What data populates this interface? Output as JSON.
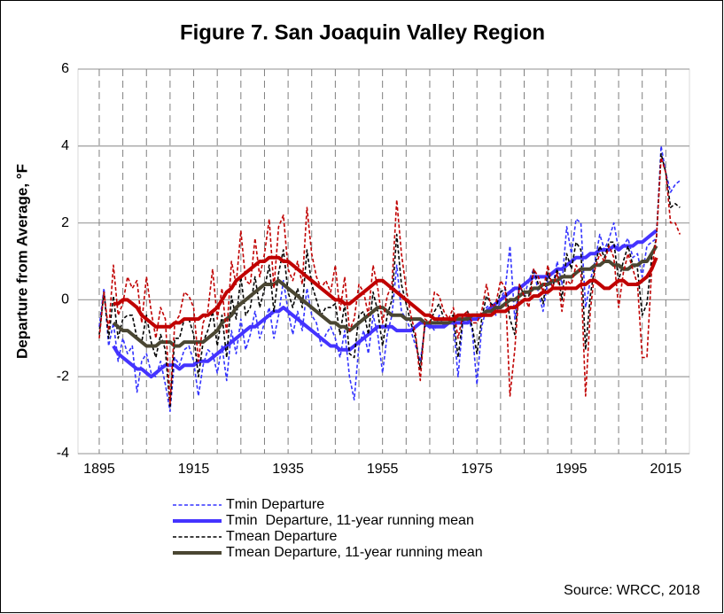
{
  "chart_data": {
    "type": "line",
    "title": "Figure 7. San Joaquin Valley Region",
    "y_label": "Departure from Average, °F",
    "source": "Source: WRCC, 2018",
    "xlim": [
      1890.5,
      2020
    ],
    "xticks": [
      1895,
      1915,
      1935,
      1955,
      1975,
      1995,
      2015
    ],
    "ylim": [
      -4,
      6
    ],
    "yticks": [
      -4,
      -2,
      0,
      2,
      4,
      6
    ],
    "grid": true,
    "x": [
      1895,
      1896,
      1897,
      1898,
      1899,
      1900,
      1901,
      1902,
      1903,
      1904,
      1905,
      1906,
      1907,
      1908,
      1909,
      1910,
      1911,
      1912,
      1913,
      1914,
      1915,
      1916,
      1917,
      1918,
      1919,
      1920,
      1921,
      1922,
      1923,
      1924,
      1925,
      1926,
      1927,
      1928,
      1929,
      1930,
      1931,
      1932,
      1933,
      1934,
      1935,
      1936,
      1937,
      1938,
      1939,
      1940,
      1941,
      1942,
      1943,
      1944,
      1945,
      1946,
      1947,
      1948,
      1949,
      1950,
      1951,
      1952,
      1953,
      1954,
      1955,
      1956,
      1957,
      1958,
      1959,
      1960,
      1961,
      1962,
      1963,
      1964,
      1965,
      1966,
      1967,
      1968,
      1969,
      1970,
      1971,
      1972,
      1973,
      1974,
      1975,
      1976,
      1977,
      1978,
      1979,
      1980,
      1981,
      1982,
      1983,
      1984,
      1985,
      1986,
      1987,
      1988,
      1989,
      1990,
      1991,
      1992,
      1993,
      1994,
      1995,
      1996,
      1997,
      1998,
      1999,
      2000,
      2001,
      2002,
      2003,
      2004,
      2005,
      2006,
      2007,
      2008,
      2009,
      2010,
      2011,
      2012,
      2013,
      2014,
      2015,
      2016,
      2017,
      2018
    ],
    "series": [
      {
        "name": "Tmin Departure",
        "color": "#3333ff",
        "style": "dashed",
        "values": [
          -0.7,
          0.3,
          -1.2,
          -0.6,
          -1.6,
          -1.0,
          -1.4,
          -1.2,
          -2.4,
          -1.6,
          -1.4,
          -1.9,
          -2.0,
          -1.6,
          -2.2,
          -2.9,
          -1.5,
          -1.7,
          -1.3,
          -1.2,
          -1.6,
          -2.5,
          -1.7,
          -1.3,
          -1.4,
          -1.9,
          -1.2,
          -2.1,
          -0.8,
          -1.4,
          -0.5,
          -1.3,
          -0.9,
          -0.3,
          -1.0,
          -0.6,
          -0.2,
          -1.0,
          -0.4,
          0.5,
          -0.3,
          -0.9,
          -0.3,
          -0.8,
          0.3,
          -0.4,
          -0.6,
          -1.2,
          -0.9,
          -0.7,
          -1.0,
          -1.5,
          -0.8,
          -2.0,
          -2.6,
          -1.2,
          -0.8,
          -1.4,
          -0.4,
          -0.9,
          -1.9,
          -0.9,
          -0.4,
          0.9,
          -0.3,
          -0.5,
          -0.8,
          -1.2,
          -1.6,
          -0.7,
          -0.6,
          -0.8,
          -0.4,
          -0.7,
          -0.5,
          -0.6,
          -2.0,
          -0.6,
          -0.4,
          -0.8,
          -2.2,
          -0.7,
          -0.2,
          -0.1,
          -0.4,
          0.0,
          0.3,
          1.4,
          -0.5,
          0.4,
          0.1,
          0.5,
          0.8,
          0.2,
          -0.3,
          0.5,
          0.3,
          1.0,
          0.4,
          1.9,
          1.2,
          2.1,
          2.0,
          -0.2,
          0.5,
          1.0,
          1.7,
          1.3,
          1.6,
          2.0,
          1.3,
          1.4,
          1.6,
          1.1,
          1.2,
          0.6,
          1.4,
          1.5,
          1.6,
          4.0,
          3.3,
          2.8,
          3.0,
          3.1
        ]
      },
      {
        "name": "Tmin  Departure, 11-year running mean",
        "color": "#4433ff",
        "style": "solid",
        "values": [
          null,
          null,
          null,
          -1.2,
          -1.4,
          -1.5,
          -1.6,
          -1.7,
          -1.8,
          -1.8,
          -1.9,
          -2.0,
          -1.9,
          -1.8,
          -1.7,
          -1.7,
          -1.7,
          -1.8,
          -1.7,
          -1.7,
          -1.7,
          -1.6,
          -1.6,
          -1.6,
          -1.5,
          -1.4,
          -1.3,
          -1.2,
          -1.1,
          -1.0,
          -0.9,
          -0.8,
          -0.7,
          -0.7,
          -0.6,
          -0.5,
          -0.4,
          -0.3,
          -0.3,
          -0.2,
          -0.3,
          -0.4,
          -0.5,
          -0.6,
          -0.7,
          -0.8,
          -0.9,
          -1.0,
          -1.1,
          -1.2,
          -1.2,
          -1.3,
          -1.3,
          -1.3,
          -1.2,
          -1.1,
          -1.0,
          -0.9,
          -0.8,
          -0.7,
          -0.7,
          -0.7,
          -0.7,
          -0.8,
          -0.8,
          -0.8,
          -0.8,
          -0.7,
          -0.6,
          -0.6,
          -0.7,
          -0.7,
          -0.7,
          -0.7,
          -0.6,
          -0.6,
          -0.6,
          -0.6,
          -0.6,
          -0.5,
          -0.5,
          -0.4,
          -0.3,
          -0.2,
          -0.1,
          0.0,
          0.1,
          0.2,
          0.3,
          0.3,
          0.4,
          0.5,
          0.6,
          0.6,
          0.6,
          0.6,
          0.7,
          0.8,
          0.8,
          0.9,
          1.0,
          1.1,
          1.1,
          1.1,
          1.2,
          1.2,
          1.3,
          1.3,
          1.3,
          1.4,
          1.3,
          1.4,
          1.4,
          1.4,
          1.5,
          1.5,
          1.6,
          1.7,
          1.8,
          null,
          null,
          null,
          null,
          null
        ]
      },
      {
        "name": "Tmean Departure",
        "color": "#000000",
        "style": "dashed",
        "values": [
          -0.9,
          0.2,
          -1.0,
          0.1,
          -1.0,
          -0.5,
          -0.4,
          -0.4,
          -1.0,
          -1.1,
          -0.4,
          -1.1,
          -1.5,
          -0.9,
          -1.3,
          -2.8,
          -1.0,
          -1.0,
          -0.5,
          -0.5,
          -0.9,
          -2.0,
          -1.1,
          -0.8,
          -0.3,
          -1.2,
          -0.4,
          -1.5,
          0.1,
          -0.5,
          0.6,
          -0.4,
          -0.2,
          0.6,
          -0.2,
          0.3,
          0.9,
          -0.3,
          0.7,
          1.3,
          0.2,
          -0.2,
          0.3,
          -0.2,
          1.3,
          0.4,
          0.0,
          -0.4,
          -0.2,
          -0.2,
          -0.1,
          -0.9,
          -0.1,
          -1.4,
          -1.5,
          -0.4,
          -0.3,
          -0.9,
          0.2,
          -0.3,
          -1.2,
          -0.4,
          0.0,
          1.7,
          0.4,
          -0.1,
          -0.6,
          -1.0,
          -1.8,
          -0.6,
          -0.6,
          -0.3,
          -0.1,
          -0.5,
          -0.5,
          -0.4,
          -1.5,
          -0.5,
          -0.3,
          -0.7,
          -1.4,
          -0.5,
          0.1,
          -0.1,
          -0.2,
          0.2,
          0.3,
          -0.5,
          -0.9,
          0.4,
          0.1,
          0.1,
          0.8,
          0.4,
          -0.1,
          0.7,
          0.3,
          0.8,
          0.0,
          1.2,
          0.8,
          1.5,
          1.3,
          -1.3,
          0.1,
          0.9,
          1.4,
          1.1,
          1.5,
          1.5,
          0.5,
          1.0,
          1.4,
          0.9,
          0.8,
          -0.4,
          -0.1,
          1.1,
          1.6,
          3.8,
          3.3,
          2.4,
          2.5,
          2.4
        ]
      },
      {
        "name": "Tmean Departure, 11-year running mean",
        "color": "#4a4632",
        "style": "solid",
        "values": [
          null,
          null,
          null,
          -0.6,
          -0.7,
          -0.8,
          -0.8,
          -0.9,
          -1.0,
          -1.1,
          -1.2,
          -1.2,
          -1.2,
          -1.1,
          -1.1,
          -1.1,
          -1.2,
          -1.2,
          -1.1,
          -1.1,
          -1.1,
          -1.1,
          -1.1,
          -1.0,
          -0.9,
          -0.8,
          -0.6,
          -0.5,
          -0.4,
          -0.2,
          -0.1,
          0.0,
          0.1,
          0.2,
          0.3,
          0.4,
          0.4,
          0.4,
          0.5,
          0.4,
          0.3,
          0.2,
          0.1,
          0.0,
          -0.1,
          -0.2,
          -0.3,
          -0.4,
          -0.5,
          -0.6,
          -0.6,
          -0.7,
          -0.7,
          -0.8,
          -0.7,
          -0.6,
          -0.5,
          -0.4,
          -0.3,
          -0.2,
          -0.2,
          -0.3,
          -0.4,
          -0.4,
          -0.4,
          -0.5,
          -0.5,
          -0.5,
          -0.5,
          -0.6,
          -0.6,
          -0.6,
          -0.6,
          -0.6,
          -0.6,
          -0.5,
          -0.5,
          -0.5,
          -0.5,
          -0.4,
          -0.4,
          -0.4,
          -0.3,
          -0.3,
          -0.2,
          -0.2,
          -0.1,
          0.0,
          0.0,
          0.1,
          0.2,
          0.2,
          0.3,
          0.3,
          0.4,
          0.4,
          0.5,
          0.5,
          0.6,
          0.6,
          0.6,
          0.7,
          0.8,
          0.8,
          0.8,
          0.9,
          0.9,
          1.0,
          1.0,
          0.9,
          0.9,
          0.8,
          0.8,
          0.9,
          0.9,
          1.0,
          1.0,
          1.2,
          1.4,
          null,
          null,
          null,
          null,
          null
        ]
      },
      {
        "color": "#c00000",
        "style": "dashed",
        "values": [
          -1.0,
          0.2,
          -0.8,
          0.9,
          -0.4,
          -0.1,
          0.6,
          0.3,
          0.5,
          -0.6,
          0.6,
          -0.3,
          -1.0,
          -0.2,
          -0.5,
          -2.7,
          -0.6,
          -0.4,
          0.2,
          0.1,
          -0.2,
          -1.6,
          -0.6,
          -0.3,
          0.8,
          -0.5,
          0.3,
          -0.9,
          1.0,
          0.4,
          1.8,
          0.5,
          0.4,
          1.6,
          0.6,
          1.2,
          2.1,
          0.3,
          1.9,
          2.2,
          0.8,
          0.5,
          1.0,
          0.4,
          2.4,
          1.2,
          0.6,
          0.3,
          0.5,
          0.2,
          0.9,
          -0.3,
          0.6,
          -0.8,
          -0.5,
          0.4,
          0.2,
          -0.4,
          0.9,
          0.3,
          -0.6,
          0.1,
          0.4,
          2.6,
          1.2,
          0.3,
          -0.4,
          -0.9,
          -2.1,
          -0.5,
          -0.6,
          0.2,
          0.1,
          -0.3,
          -0.5,
          -0.2,
          -1.0,
          -0.4,
          -0.3,
          -0.6,
          -0.6,
          -0.3,
          0.4,
          -0.2,
          -0.1,
          0.5,
          0.3,
          -2.5,
          -1.3,
          0.4,
          0.1,
          -0.2,
          0.8,
          0.6,
          0.2,
          0.9,
          0.3,
          0.7,
          -0.3,
          0.5,
          0.4,
          0.9,
          0.7,
          -2.5,
          -0.3,
          0.8,
          1.2,
          1.0,
          1.4,
          1.1,
          -0.2,
          0.7,
          1.2,
          0.8,
          0.4,
          -1.5,
          -1.5,
          0.8,
          1.6,
          3.7,
          3.3,
          2.0,
          2.0,
          1.7
        ]
      },
      {
        "color": "#c00000",
        "style": "solid",
        "values": [
          null,
          null,
          null,
          -0.1,
          -0.1,
          0.0,
          0.0,
          -0.1,
          -0.2,
          -0.4,
          -0.5,
          -0.6,
          -0.7,
          -0.7,
          -0.7,
          -0.7,
          -0.6,
          -0.6,
          -0.5,
          -0.5,
          -0.5,
          -0.5,
          -0.4,
          -0.4,
          -0.3,
          -0.2,
          0.0,
          0.2,
          0.3,
          0.5,
          0.6,
          0.7,
          0.8,
          0.9,
          1.0,
          1.0,
          1.1,
          1.1,
          1.1,
          1.0,
          1.0,
          0.9,
          0.8,
          0.7,
          0.6,
          0.5,
          0.4,
          0.3,
          0.2,
          0.1,
          0.0,
          0.0,
          -0.1,
          -0.1,
          0.0,
          0.1,
          0.2,
          0.3,
          0.4,
          0.5,
          0.5,
          0.4,
          0.3,
          0.2,
          0.1,
          0.0,
          -0.1,
          -0.2,
          -0.3,
          -0.4,
          -0.4,
          -0.5,
          -0.5,
          -0.5,
          -0.5,
          -0.5,
          -0.4,
          -0.4,
          -0.4,
          -0.4,
          -0.4,
          -0.4,
          -0.4,
          -0.4,
          -0.3,
          -0.3,
          -0.3,
          -0.2,
          -0.2,
          -0.1,
          0.0,
          0.0,
          0.1,
          0.1,
          0.2,
          0.2,
          0.3,
          0.3,
          0.3,
          0.3,
          0.3,
          0.3,
          0.4,
          0.4,
          0.5,
          0.5,
          0.4,
          0.3,
          0.3,
          0.4,
          0.5,
          0.5,
          0.4,
          0.4,
          0.4,
          0.5,
          0.6,
          0.8,
          1.1,
          null,
          null,
          null,
          null,
          null
        ]
      }
    ]
  }
}
